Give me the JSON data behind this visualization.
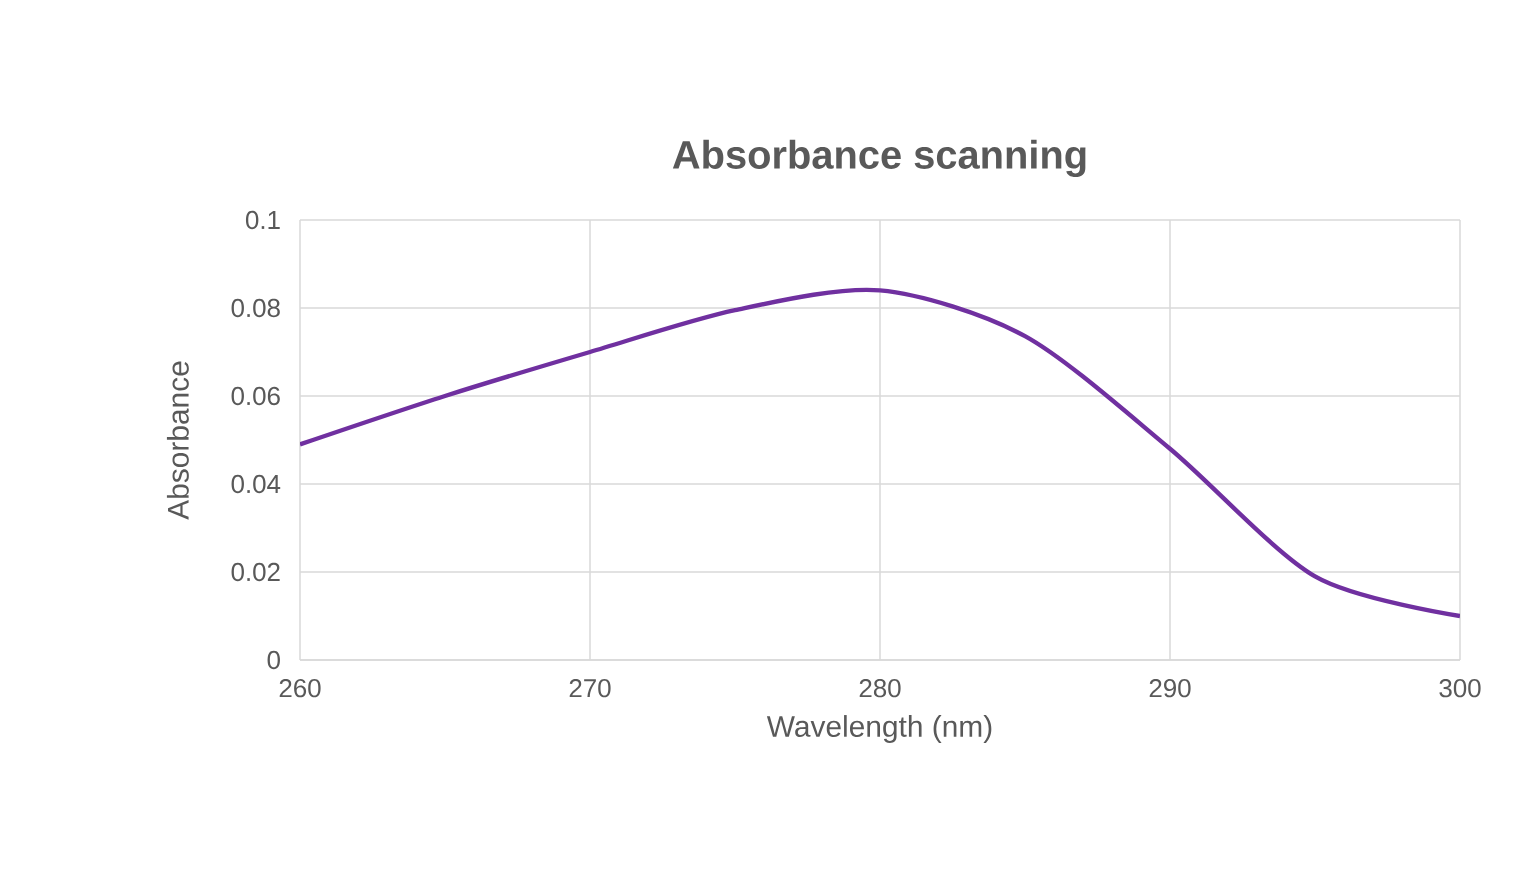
{
  "chart_data": {
    "type": "line",
    "title": "Absorbance scanning",
    "xlabel": "Wavelength (nm)",
    "ylabel": "Absorbance",
    "x": [
      260,
      265,
      270,
      275,
      280,
      285,
      290,
      295,
      300
    ],
    "series": [
      {
        "color": "#7030a0",
        "values": [
          0.049,
          0.06,
          0.07,
          0.0795,
          0.084,
          0.0736,
          0.048,
          0.019,
          0.01
        ]
      }
    ],
    "xlim": [
      260,
      300
    ],
    "xticks": [
      260,
      270,
      280,
      290,
      300
    ],
    "ylim": [
      0,
      0.1
    ],
    "yticks": [
      0,
      0.02,
      0.04,
      0.06,
      0.08,
      0.1
    ],
    "grid": true,
    "marker": "none",
    "line_style": "solid"
  }
}
